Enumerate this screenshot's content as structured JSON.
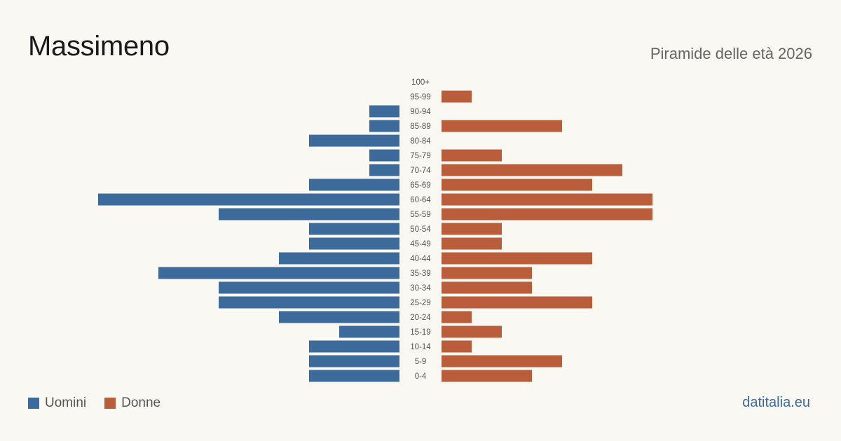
{
  "header": {
    "title": "Massimeno",
    "subtitle": "Piramide delle età 2026"
  },
  "footer": {
    "source": "datitalia.eu"
  },
  "colors": {
    "male": "#3b6a9b",
    "female": "#b95d3b",
    "background": "#faf8f3"
  },
  "chart_data": {
    "type": "bar",
    "orientation": "horizontal-pyramid",
    "categories": [
      "100+",
      "95-99",
      "90-94",
      "85-89",
      "80-84",
      "75-79",
      "70-74",
      "65-69",
      "60-64",
      "55-59",
      "50-54",
      "45-49",
      "40-44",
      "35-39",
      "30-34",
      "25-29",
      "20-24",
      "15-19",
      "10-14",
      "5-9",
      "0-4"
    ],
    "series": [
      {
        "name": "Uomini",
        "color": "#3b6a9b",
        "side": "left",
        "values": [
          0,
          0,
          1,
          1,
          3,
          1,
          1,
          3,
          10,
          6,
          3,
          3,
          4,
          8,
          6,
          6,
          4,
          2,
          3,
          3,
          3
        ]
      },
      {
        "name": "Donne",
        "color": "#b95d3b",
        "side": "right",
        "values": [
          0,
          1,
          0,
          4,
          0,
          2,
          6,
          5,
          7,
          7,
          2,
          2,
          5,
          3,
          3,
          5,
          1,
          2,
          1,
          4,
          3
        ]
      }
    ],
    "legend_position": "bottom-left",
    "grid": false
  }
}
